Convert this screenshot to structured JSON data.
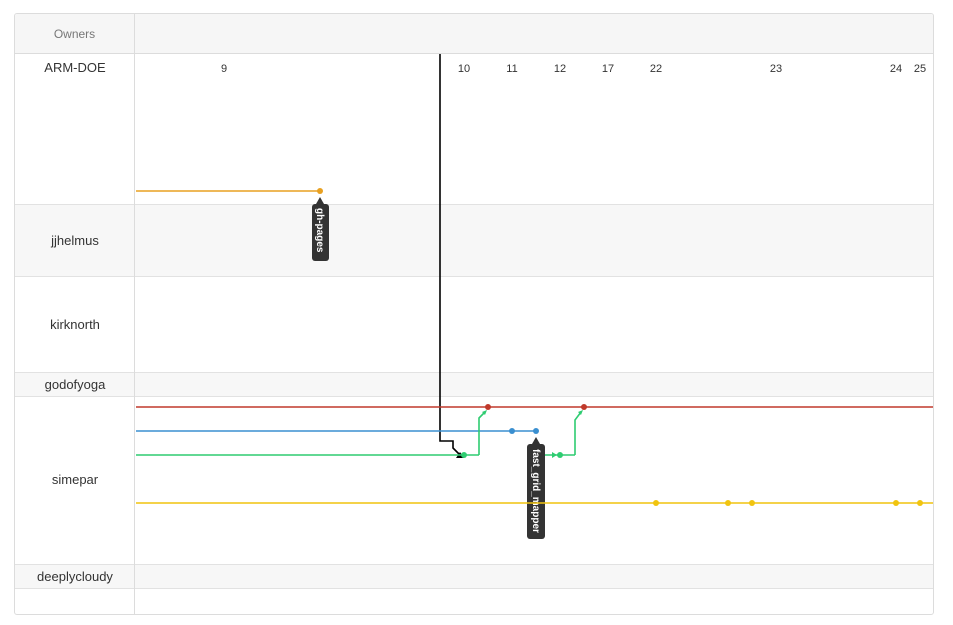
{
  "header": {
    "owners_label": "Owners"
  },
  "owners": [
    {
      "name": "ARM-DOE"
    },
    {
      "name": "jjhelmus"
    },
    {
      "name": "kirknorth"
    },
    {
      "name": "godofyoga"
    },
    {
      "name": "simepar"
    },
    {
      "name": "deeplycloudy"
    }
  ],
  "date_ticks": [
    "9",
    "10",
    "11",
    "12",
    "17",
    "22",
    "23",
    "24",
    "25"
  ],
  "branch_tags": [
    "gh-pages",
    "fast_grid_mapper"
  ],
  "colors": {
    "orange": "#e8a020",
    "red": "#c0392b",
    "blue": "#3a8fd0",
    "green": "#2ecc71",
    "yellow": "#f1c40f",
    "black": "#000000",
    "tag_bg": "#333333"
  }
}
